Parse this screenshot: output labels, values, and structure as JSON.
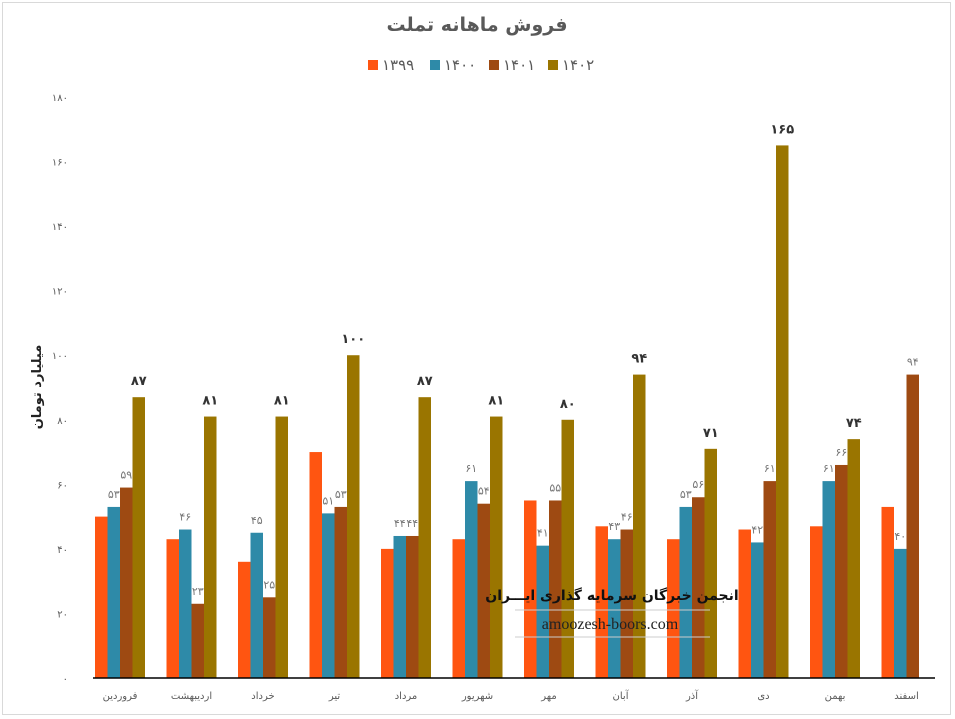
{
  "chart_data": {
    "type": "bar",
    "title": "فروش ماهانه تملت",
    "ylabel": "میلیارد تومان",
    "xlabel": "",
    "ylim": [
      0,
      180
    ],
    "yticks": [
      0,
      20,
      40,
      60,
      80,
      100,
      120,
      140,
      160,
      180
    ],
    "grid": false,
    "legend_position": "top",
    "categories": [
      "فروردین",
      "اردیبهشت",
      "خرداد",
      "تیر",
      "مرداد",
      "شهریور",
      "مهر",
      "آبان",
      "آذر",
      "دی",
      "بهمن",
      "اسفند"
    ],
    "series": [
      {
        "name": "1399",
        "legend_label": "۱۳۹۹",
        "color": "#FF5511",
        "show_labels": false,
        "bold_labels": false,
        "values": [
          50,
          43,
          36,
          70,
          40,
          43,
          55,
          47,
          43,
          46,
          47,
          53
        ]
      },
      {
        "name": "1400",
        "legend_label": "۱۴۰۰",
        "color": "#2E8AA8",
        "show_labels": true,
        "bold_labels": false,
        "values": [
          53,
          46,
          45,
          51,
          44,
          61,
          41,
          43,
          53,
          42,
          61,
          40
        ]
      },
      {
        "name": "1401",
        "legend_label": "۱۴۰۱",
        "color": "#9E4A12",
        "show_labels": true,
        "bold_labels": false,
        "values": [
          59,
          23,
          25,
          53,
          44,
          54,
          55,
          46,
          56,
          61,
          66,
          94
        ]
      },
      {
        "name": "1402",
        "legend_label": "۱۴۰۲",
        "color": "#9A7500",
        "show_labels": true,
        "bold_labels": true,
        "values": [
          87,
          81,
          81,
          100,
          87,
          81,
          80,
          94,
          71,
          165,
          74,
          null
        ]
      }
    ]
  },
  "watermark": {
    "line1": "انجمن خبرگان سرمایه گذاری ایـــران",
    "line2": "amoozesh-boors.com"
  }
}
